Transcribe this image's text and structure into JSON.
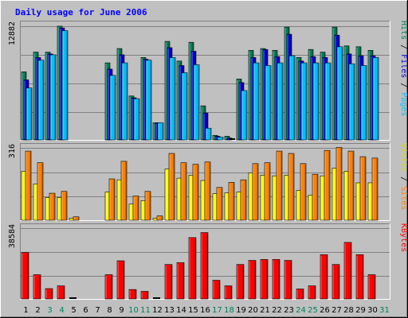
{
  "title": "Daily usage for June 2006",
  "colors": {
    "background": "#c0c0c0",
    "plot_bg": "#c0c0c0",
    "grid": "#808080",
    "title": "#0000ff",
    "hits": "#00805c",
    "files": "#0000d8",
    "pages": "#00c0ff",
    "visits": "#ffff00",
    "sites": "#ff8000",
    "kbytes": "#ff0000",
    "weekend_label": "#00805c",
    "weekday_label": "#000000"
  },
  "chart_data": [
    {
      "type": "bar",
      "name": "hits-files-pages",
      "max_label": "12882",
      "ylim": [
        0,
        12882
      ],
      "right_label": {
        "pages": "Pages",
        "sep1": " / ",
        "files": "Files",
        "sep2": " / ",
        "hits": "Hits"
      },
      "categories": [
        "1",
        "2",
        "3",
        "4",
        "5",
        "6",
        "7",
        "8",
        "9",
        "10",
        "11",
        "12",
        "13",
        "14",
        "15",
        "16",
        "17",
        "18",
        "19",
        "20",
        "21",
        "22",
        "23",
        "24",
        "25",
        "26",
        "27",
        "28",
        "29",
        "30",
        "31"
      ],
      "weekend_days": [
        3,
        4,
        10,
        11,
        17,
        18,
        24,
        25,
        31
      ],
      "series": [
        {
          "name": "Hits",
          "values": [
            7700,
            9900,
            9900,
            12800,
            0,
            0,
            0,
            8700,
            10300,
            5000,
            9300,
            2000,
            11100,
            8900,
            11000,
            3900,
            600,
            500,
            6900,
            10100,
            10300,
            10100,
            12700,
            9300,
            10200,
            9900,
            12700,
            10600,
            10500,
            10100,
            0
          ]
        },
        {
          "name": "Files",
          "values": [
            6800,
            9300,
            9700,
            12600,
            0,
            0,
            0,
            8000,
            9600,
            4800,
            9100,
            2000,
            10400,
            8400,
            10000,
            3100,
            500,
            300,
            6500,
            9300,
            10200,
            9400,
            11900,
            8900,
            9400,
            9300,
            11800,
            9700,
            9500,
            9500,
            0
          ]
        },
        {
          "name": "Pages",
          "values": [
            5900,
            9000,
            9600,
            12300,
            0,
            0,
            0,
            7300,
            8700,
            4700,
            9000,
            2000,
            9300,
            7600,
            8500,
            1400,
            400,
            200,
            5600,
            8700,
            8400,
            8700,
            9500,
            8700,
            8700,
            8700,
            10500,
            8600,
            8400,
            9300,
            0
          ]
        }
      ]
    },
    {
      "type": "bar",
      "name": "visits-sites",
      "max_label": "316",
      "ylim": [
        0,
        316
      ],
      "right_label": {
        "sites": "Sites",
        "sep": " / ",
        "visits": "Visits"
      },
      "categories": [
        "1",
        "2",
        "3",
        "4",
        "5",
        "6",
        "7",
        "8",
        "9",
        "10",
        "11",
        "12",
        "13",
        "14",
        "15",
        "16",
        "17",
        "18",
        "19",
        "20",
        "21",
        "22",
        "23",
        "24",
        "25",
        "26",
        "27",
        "28",
        "29",
        "30",
        "31"
      ],
      "weekend_days": [
        3,
        4,
        10,
        11,
        17,
        18,
        24,
        25,
        31
      ],
      "series": [
        {
          "name": "Visits",
          "values": [
            215,
            160,
            102,
            102,
            12,
            0,
            0,
            125,
            178,
            73,
            88,
            12,
            225,
            185,
            198,
            175,
            118,
            122,
            125,
            208,
            198,
            195,
            198,
            132,
            112,
            195,
            228,
            215,
            165,
            165,
            0
          ]
        },
        {
          "name": "Sites",
          "values": [
            302,
            252,
            120,
            128,
            18,
            0,
            0,
            182,
            258,
            108,
            128,
            22,
            292,
            252,
            245,
            255,
            145,
            167,
            178,
            248,
            252,
            302,
            292,
            248,
            202,
            305,
            318,
            302,
            278,
            272,
            0
          ]
        }
      ]
    },
    {
      "type": "bar",
      "name": "kbytes",
      "max_label": "38584",
      "ylim": [
        0,
        38584
      ],
      "right_label": {
        "kbytes": "KBytes"
      },
      "categories": [
        "1",
        "2",
        "3",
        "4",
        "5",
        "6",
        "7",
        "8",
        "9",
        "10",
        "11",
        "12",
        "13",
        "14",
        "15",
        "16",
        "17",
        "18",
        "19",
        "20",
        "21",
        "22",
        "23",
        "24",
        "25",
        "26",
        "27",
        "28",
        "29",
        "30",
        "31"
      ],
      "weekend_days": [
        3,
        4,
        10,
        11,
        17,
        18,
        24,
        25,
        31
      ],
      "series": [
        {
          "name": "KBytes",
          "values": [
            25500,
            13500,
            6000,
            7500,
            300,
            0,
            0,
            13500,
            21000,
            5500,
            4500,
            300,
            19000,
            20000,
            33500,
            36200,
            10500,
            7500,
            19000,
            21200,
            21700,
            21700,
            21200,
            5800,
            7500,
            24300,
            19000,
            30900,
            24300,
            13500,
            0
          ]
        }
      ]
    }
  ]
}
